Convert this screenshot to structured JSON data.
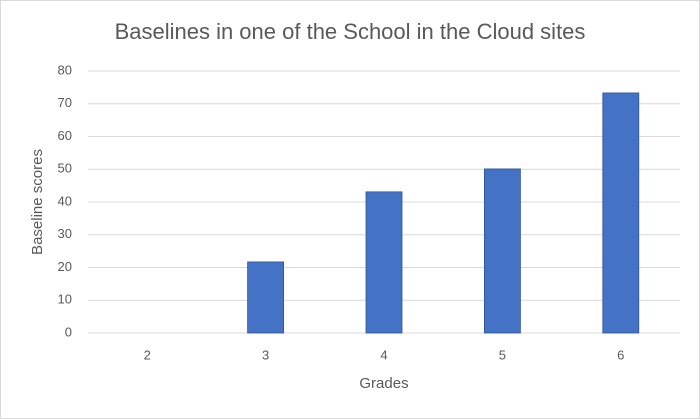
{
  "chart_data": {
    "type": "bar",
    "title": "Baselines in one of the School in the Cloud sites",
    "x_label": "Grades",
    "y_label": "Baseline scores",
    "categories": [
      "2",
      "3",
      "4",
      "5",
      "6"
    ],
    "values": [
      null,
      21.7,
      43.1,
      50.1,
      73.3
    ],
    "color": "#4472c4",
    "ylim": [
      0,
      80
    ],
    "yticks": [
      0,
      10,
      20,
      30,
      40,
      50,
      60,
      70,
      80
    ],
    "grid": true
  }
}
